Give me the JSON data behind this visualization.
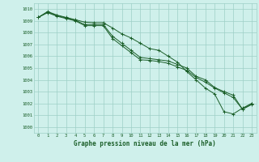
{
  "title": "Graphe pression niveau de la mer (hPa)",
  "background_color": "#cff0eb",
  "grid_color": "#9ecfc7",
  "line_color": "#1a5e28",
  "xlim": [
    -0.5,
    23.5
  ],
  "ylim": [
    999.5,
    1010.5
  ],
  "yticks": [
    1000,
    1001,
    1002,
    1003,
    1004,
    1005,
    1006,
    1007,
    1008,
    1009,
    1010
  ],
  "xticks": [
    0,
    1,
    2,
    3,
    4,
    5,
    6,
    7,
    8,
    9,
    10,
    11,
    12,
    13,
    14,
    15,
    16,
    17,
    18,
    19,
    20,
    21,
    22,
    23
  ],
  "series": {
    "line1": [
      1009.3,
      1009.8,
      1009.5,
      1009.3,
      1009.1,
      1008.9,
      1008.85,
      1008.85,
      1008.4,
      1007.9,
      1007.55,
      1007.1,
      1006.65,
      1006.5,
      1006.0,
      1005.5,
      1004.7,
      1004.0,
      1003.3,
      1002.8,
      1001.3,
      1001.1,
      1001.6,
      1002.0
    ],
    "line2": [
      1009.3,
      1009.75,
      1009.45,
      1009.25,
      1009.05,
      1008.7,
      1008.7,
      1008.7,
      1007.7,
      1007.1,
      1006.5,
      1005.9,
      1005.8,
      1005.7,
      1005.6,
      1005.3,
      1005.0,
      1004.3,
      1004.0,
      1003.35,
      1003.0,
      1002.7,
      1001.5,
      1002.0
    ],
    "line3": [
      1009.3,
      1009.7,
      1009.4,
      1009.2,
      1009.0,
      1008.6,
      1008.6,
      1008.6,
      1007.5,
      1006.9,
      1006.3,
      1005.7,
      1005.65,
      1005.55,
      1005.4,
      1005.1,
      1004.8,
      1004.2,
      1003.8,
      1003.3,
      1002.9,
      1002.5,
      1001.5,
      1001.9
    ]
  }
}
